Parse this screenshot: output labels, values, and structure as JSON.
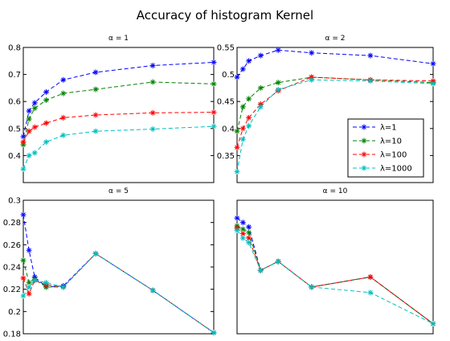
{
  "figure_title": "Accuracy of histogram Kernel",
  "chart_data": [
    {
      "type": "line",
      "title": "α = 1",
      "xlabel": "",
      "ylabel": "",
      "ylim": [
        0.3,
        0.8
      ],
      "yticks": [
        0.4,
        0.5,
        0.6,
        0.7,
        0.8
      ],
      "ytick_labels": [
        "0.4",
        "0.5",
        "0.6",
        "0.7",
        "0.8"
      ],
      "xticks": [],
      "grid": false,
      "x": [
        0.1,
        0.3,
        0.5,
        1,
        2,
        4,
        8,
        16
      ],
      "series": [
        {
          "name": "λ=1",
          "color": "#0000ff",
          "values": [
            0.47,
            0.565,
            0.595,
            0.635,
            0.68,
            0.708,
            0.733,
            0.745
          ]
        },
        {
          "name": "λ=10",
          "color": "#008000",
          "values": [
            0.44,
            0.535,
            0.575,
            0.605,
            0.63,
            0.645,
            0.672,
            0.665
          ]
        },
        {
          "name": "λ=100",
          "color": "#ff0000",
          "values": [
            0.45,
            0.49,
            0.505,
            0.52,
            0.54,
            0.55,
            0.558,
            0.56
          ]
        },
        {
          "name": "λ=1000",
          "color": "#00bfbf",
          "values": [
            0.35,
            0.4,
            0.41,
            0.45,
            0.475,
            0.49,
            0.498,
            0.508
          ]
        }
      ]
    },
    {
      "type": "line",
      "title": "α = 2",
      "xlabel": "",
      "ylabel": "",
      "ylim": [
        0.3,
        0.55
      ],
      "yticks": [
        0.35,
        0.4,
        0.45,
        0.5,
        0.55
      ],
      "ytick_labels": [
        "0.35",
        "0.4",
        "0.45",
        "0.5",
        "0.55"
      ],
      "xticks": [],
      "grid": false,
      "legend_position": "lower-right",
      "x": [
        0.1,
        0.3,
        0.5,
        1,
        2,
        4,
        8,
        16
      ],
      "series": [
        {
          "name": "λ=1",
          "color": "#0000ff",
          "values": [
            0.495,
            0.51,
            0.525,
            0.535,
            0.545,
            0.54,
            0.535,
            0.52
          ]
        },
        {
          "name": "λ=10",
          "color": "#008000",
          "values": [
            0.395,
            0.44,
            0.455,
            0.475,
            0.485,
            0.495,
            0.49,
            0.485
          ]
        },
        {
          "name": "λ=100",
          "color": "#ff0000",
          "values": [
            0.365,
            0.4,
            0.42,
            0.445,
            0.47,
            0.495,
            0.49,
            0.488
          ]
        },
        {
          "name": "λ=1000",
          "color": "#00bfbf",
          "values": [
            0.32,
            0.38,
            0.405,
            0.44,
            0.472,
            0.49,
            0.488,
            0.483
          ]
        }
      ]
    },
    {
      "type": "line",
      "title": "α = 5",
      "xlabel": "",
      "ylabel": "",
      "ylim": [
        0.18,
        0.3
      ],
      "yticks": [
        0.18,
        0.2,
        0.22,
        0.24,
        0.26,
        0.28,
        0.3
      ],
      "ytick_labels": [
        "0.18",
        "0.2",
        "0.22",
        "0.24",
        "0.26",
        "0.28",
        "0.3"
      ],
      "xticks": [],
      "grid": false,
      "x": [
        0.1,
        0.3,
        0.5,
        1,
        2,
        4,
        8,
        16
      ],
      "series": [
        {
          "name": "λ=1",
          "color": "#0000ff",
          "values": [
            0.287,
            0.255,
            0.231,
            0.222,
            0.223,
            0.252,
            0.219,
            0.181
          ]
        },
        {
          "name": "λ=10",
          "color": "#008000",
          "values": [
            0.246,
            0.226,
            0.229,
            0.222,
            0.222,
            0.252,
            0.219,
            0.181
          ]
        },
        {
          "name": "λ=100",
          "color": "#ff0000",
          "values": [
            0.23,
            0.216,
            0.228,
            0.224,
            0.222,
            0.252,
            0.219,
            0.181
          ]
        },
        {
          "name": "λ=1000",
          "color": "#00bfbf",
          "values": [
            0.214,
            0.222,
            0.228,
            0.226,
            0.222,
            0.252,
            0.219,
            0.181
          ]
        }
      ]
    },
    {
      "type": "line",
      "title": "α = 10",
      "xlabel": "",
      "ylabel": "",
      "ylim": [
        0.18,
        0.3
      ],
      "yticks": [],
      "xticks": [],
      "grid": false,
      "x": [
        0.1,
        0.3,
        0.5,
        1,
        2,
        4,
        8,
        16
      ],
      "series": [
        {
          "name": "λ=1",
          "color": "#0000ff",
          "values": [
            0.284,
            0.28,
            0.276,
            0.237,
            0.245,
            0.222,
            0.231,
            0.189
          ]
        },
        {
          "name": "λ=10",
          "color": "#008000",
          "values": [
            0.277,
            0.274,
            0.271,
            0.237,
            0.245,
            0.222,
            0.231,
            0.189
          ]
        },
        {
          "name": "λ=100",
          "color": "#ff0000",
          "values": [
            0.275,
            0.27,
            0.266,
            0.237,
            0.245,
            0.222,
            0.231,
            0.189
          ]
        },
        {
          "name": "λ=1000",
          "color": "#00bfbf",
          "values": [
            0.273,
            0.266,
            0.262,
            0.237,
            0.245,
            0.222,
            0.217,
            0.189
          ]
        }
      ]
    }
  ]
}
